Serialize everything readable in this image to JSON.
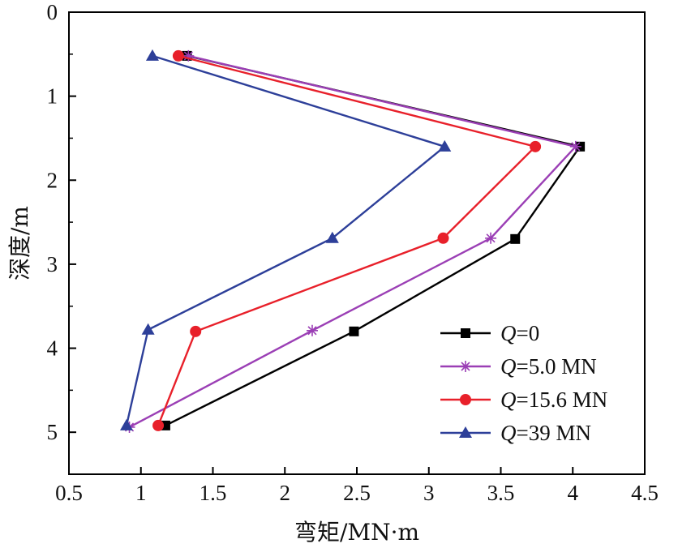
{
  "chart_data": {
    "type": "line",
    "title": "",
    "xlabel": "弯矩/MN·m",
    "ylabel": "深度/m",
    "xlim": [
      0.5,
      4.5
    ],
    "ylim": [
      0,
      5.5
    ],
    "y_inverted": true,
    "x_ticks": [
      "0.5",
      "1",
      "1.5",
      "2",
      "2.5",
      "3",
      "3.5",
      "4",
      "4.5"
    ],
    "y_ticks": [
      "0",
      "1",
      "2",
      "3",
      "4",
      "5"
    ],
    "grid": false,
    "legend_position": "bottom-right",
    "series": [
      {
        "name_var": "Q",
        "name_rest": "=0",
        "color": "#000000",
        "marker": "square",
        "points": [
          [
            1.32,
            0.52
          ],
          [
            4.05,
            1.6
          ],
          [
            3.6,
            2.7
          ],
          [
            2.48,
            3.8
          ],
          [
            1.17,
            4.92
          ]
        ]
      },
      {
        "name_var": "Q",
        "name_rest": "=5.0 MN",
        "color": "#9b3fb5",
        "marker": "asterisk",
        "points": [
          [
            1.33,
            0.52
          ],
          [
            4.02,
            1.6
          ],
          [
            3.43,
            2.69
          ],
          [
            2.19,
            3.79
          ],
          [
            0.92,
            4.94
          ]
        ]
      },
      {
        "name_var": "Q",
        "name_rest": "=15.6 MN",
        "color": "#e8202a",
        "marker": "circle",
        "points": [
          [
            1.26,
            0.52
          ],
          [
            3.74,
            1.6
          ],
          [
            3.1,
            2.69
          ],
          [
            1.38,
            3.8
          ],
          [
            1.12,
            4.92
          ]
        ]
      },
      {
        "name_var": "Q",
        "name_rest": "=39 MN",
        "color": "#2d3f99",
        "marker": "triangle",
        "points": [
          [
            1.08,
            0.52
          ],
          [
            3.11,
            1.6
          ],
          [
            2.33,
            2.69
          ],
          [
            1.05,
            3.78
          ],
          [
            0.9,
            4.92
          ]
        ]
      }
    ]
  }
}
